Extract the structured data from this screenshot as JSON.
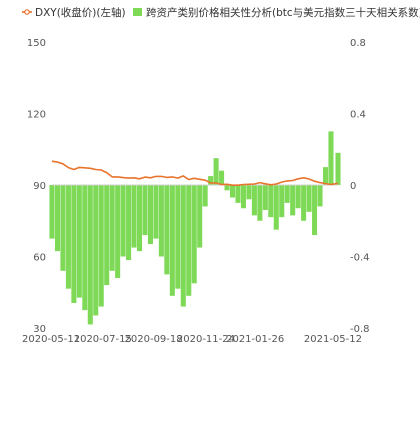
{
  "chart_data": {
    "type": "bar+line",
    "x_tick_labels": [
      "2020-05-11",
      "2020-07-15",
      "2020-09-18",
      "2020-11-24",
      "2021-01-26",
      "2021-05-12"
    ],
    "x_range": [
      "2020-05-11",
      "2021-05-12"
    ],
    "left_axis": {
      "range": [
        30,
        150
      ],
      "ticks": [
        "30",
        "60",
        "90",
        "120",
        "150"
      ]
    },
    "right_axis": {
      "range": [
        -0.8,
        0.8
      ],
      "ticks": [
        "-0.8",
        "-0.4",
        "0",
        "0.4",
        "0.8"
      ]
    },
    "grid": false,
    "legend_position": "top-left",
    "series": [
      {
        "name": "DXY(收盘价)(左轴)",
        "type": "line",
        "axis": "left",
        "color": "#e8742c",
        "points": [
          [
            "2020-05-11",
            100
          ],
          [
            "2020-05-18",
            99.6
          ],
          [
            "2020-05-25",
            98.9
          ],
          [
            "2020-06-01",
            97.3
          ],
          [
            "2020-06-08",
            96.5
          ],
          [
            "2020-06-15",
            97.4
          ],
          [
            "2020-06-22",
            97.2
          ],
          [
            "2020-06-29",
            97.0
          ],
          [
            "2020-07-06",
            96.5
          ],
          [
            "2020-07-13",
            96.3
          ],
          [
            "2020-07-20",
            95.2
          ],
          [
            "2020-07-27",
            93.4
          ],
          [
            "2020-08-03",
            93.4
          ],
          [
            "2020-08-10",
            93.1
          ],
          [
            "2020-08-17",
            92.9
          ],
          [
            "2020-08-24",
            93.0
          ],
          [
            "2020-08-31",
            92.6
          ],
          [
            "2020-09-07",
            93.3
          ],
          [
            "2020-09-14",
            93.0
          ],
          [
            "2020-09-21",
            93.6
          ],
          [
            "2020-09-28",
            93.6
          ],
          [
            "2020-10-05",
            93.2
          ],
          [
            "2020-10-12",
            93.4
          ],
          [
            "2020-10-19",
            92.9
          ],
          [
            "2020-10-26",
            93.8
          ],
          [
            "2020-11-02",
            92.3
          ],
          [
            "2020-11-09",
            92.8
          ],
          [
            "2020-11-16",
            92.4
          ],
          [
            "2020-11-23",
            92.0
          ],
          [
            "2020-11-30",
            90.9
          ],
          [
            "2020-12-07",
            90.9
          ],
          [
            "2020-12-14",
            90.2
          ],
          [
            "2020-12-21",
            90.3
          ],
          [
            "2020-12-28",
            89.9
          ],
          [
            "2021-01-04",
            89.9
          ],
          [
            "2021-01-11",
            90.2
          ],
          [
            "2021-01-18",
            90.3
          ],
          [
            "2021-01-25",
            90.4
          ],
          [
            "2021-02-01",
            91.0
          ],
          [
            "2021-02-08",
            90.5
          ],
          [
            "2021-02-15",
            90.1
          ],
          [
            "2021-02-22",
            90.4
          ],
          [
            "2021-03-01",
            91.2
          ],
          [
            "2021-03-08",
            91.7
          ],
          [
            "2021-03-15",
            91.9
          ],
          [
            "2021-03-22",
            92.6
          ],
          [
            "2021-03-29",
            93.0
          ],
          [
            "2021-04-05",
            92.5
          ],
          [
            "2021-04-12",
            91.6
          ],
          [
            "2021-04-19",
            91.0
          ],
          [
            "2021-04-26",
            90.6
          ],
          [
            "2021-05-03",
            90.2
          ],
          [
            "2021-05-12",
            90.7
          ]
        ]
      },
      {
        "name": "跨资产类别价格相关性分析(btc与美元指数三十天相关系数)(右轴)",
        "type": "bar",
        "axis": "right",
        "color": "#7ed957",
        "points": [
          [
            "2020-05-11",
            -0.3
          ],
          [
            "2020-05-18",
            -0.37
          ],
          [
            "2020-05-25",
            -0.48
          ],
          [
            "2020-06-01",
            -0.58
          ],
          [
            "2020-06-08",
            -0.66
          ],
          [
            "2020-06-15",
            -0.63
          ],
          [
            "2020-06-22",
            -0.7
          ],
          [
            "2020-06-29",
            -0.78
          ],
          [
            "2020-07-06",
            -0.73
          ],
          [
            "2020-07-13",
            -0.68
          ],
          [
            "2020-07-20",
            -0.56
          ],
          [
            "2020-07-27",
            -0.48
          ],
          [
            "2020-08-03",
            -0.52
          ],
          [
            "2020-08-10",
            -0.4
          ],
          [
            "2020-08-17",
            -0.42
          ],
          [
            "2020-08-24",
            -0.35
          ],
          [
            "2020-08-31",
            -0.37
          ],
          [
            "2020-09-07",
            -0.28
          ],
          [
            "2020-09-14",
            -0.33
          ],
          [
            "2020-09-21",
            -0.3
          ],
          [
            "2020-09-28",
            -0.4
          ],
          [
            "2020-10-05",
            -0.5
          ],
          [
            "2020-10-12",
            -0.62
          ],
          [
            "2020-10-19",
            -0.58
          ],
          [
            "2020-10-26",
            -0.68
          ],
          [
            "2020-11-02",
            -0.62
          ],
          [
            "2020-11-09",
            -0.55
          ],
          [
            "2020-11-16",
            -0.35
          ],
          [
            "2020-11-23",
            -0.12
          ],
          [
            "2020-11-30",
            0.05
          ],
          [
            "2020-12-07",
            0.15
          ],
          [
            "2020-12-14",
            0.08
          ],
          [
            "2020-12-21",
            -0.03
          ],
          [
            "2020-12-28",
            -0.07
          ],
          [
            "2021-01-04",
            -0.1
          ],
          [
            "2021-01-11",
            -0.13
          ],
          [
            "2021-01-18",
            -0.08
          ],
          [
            "2021-01-25",
            -0.17
          ],
          [
            "2021-02-01",
            -0.2
          ],
          [
            "2021-02-08",
            -0.14
          ],
          [
            "2021-02-15",
            -0.18
          ],
          [
            "2021-02-22",
            -0.25
          ],
          [
            "2021-03-01",
            -0.18
          ],
          [
            "2021-03-08",
            -0.1
          ],
          [
            "2021-03-15",
            -0.17
          ],
          [
            "2021-03-22",
            -0.13
          ],
          [
            "2021-03-29",
            -0.2
          ],
          [
            "2021-04-05",
            -0.15
          ],
          [
            "2021-04-12",
            -0.28
          ],
          [
            "2021-04-19",
            -0.12
          ],
          [
            "2021-04-26",
            0.1
          ],
          [
            "2021-05-03",
            0.3
          ],
          [
            "2021-05-12",
            0.18
          ]
        ]
      }
    ]
  }
}
